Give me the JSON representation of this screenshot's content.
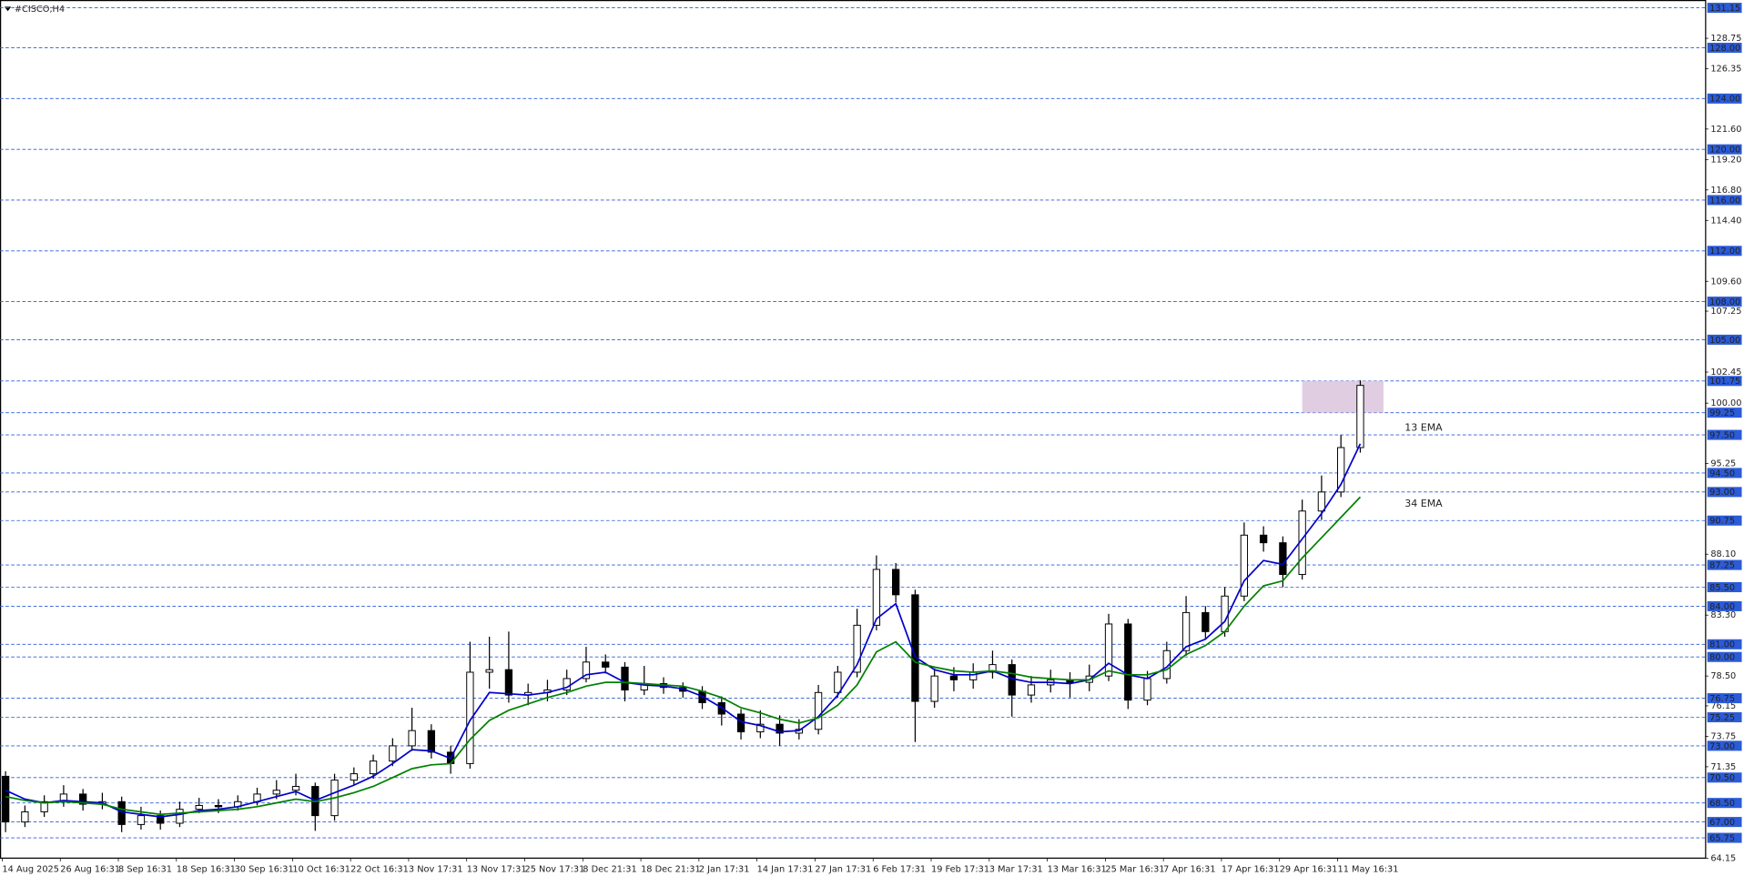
{
  "chart_data": {
    "type": "candlestick",
    "title": "#CISCO,H4",
    "candles": [
      [
        70.6,
        71.0,
        66.2,
        67.0
      ],
      [
        67.0,
        68.3,
        66.6,
        67.8
      ],
      [
        67.8,
        69.1,
        67.4,
        68.6
      ],
      [
        68.6,
        69.9,
        68.2,
        69.2
      ],
      [
        69.2,
        69.6,
        67.9,
        68.4
      ],
      [
        68.4,
        69.3,
        68.0,
        68.6
      ],
      [
        68.6,
        69.0,
        66.2,
        66.8
      ],
      [
        66.8,
        68.2,
        66.4,
        67.5
      ],
      [
        67.5,
        67.9,
        66.4,
        66.9
      ],
      [
        66.9,
        68.6,
        66.6,
        68.0
      ],
      [
        68.0,
        68.9,
        67.7,
        68.3
      ],
      [
        68.3,
        68.8,
        67.7,
        68.2
      ],
      [
        68.2,
        69.1,
        67.9,
        68.6
      ],
      [
        68.6,
        69.7,
        68.3,
        69.2
      ],
      [
        69.2,
        70.3,
        68.8,
        69.5
      ],
      [
        69.5,
        70.8,
        69.1,
        69.8
      ],
      [
        69.8,
        70.1,
        66.3,
        67.5
      ],
      [
        67.5,
        70.8,
        67.1,
        70.3
      ],
      [
        70.3,
        71.3,
        69.9,
        70.8
      ],
      [
        70.8,
        72.3,
        70.4,
        71.8
      ],
      [
        71.8,
        73.6,
        71.4,
        73.0
      ],
      [
        73.0,
        76.0,
        72.6,
        74.2
      ],
      [
        74.2,
        74.7,
        72.0,
        72.5
      ],
      [
        72.5,
        73.0,
        70.8,
        71.6
      ],
      [
        71.6,
        81.2,
        71.2,
        78.8
      ],
      [
        78.8,
        81.6,
        77.5,
        79.0
      ],
      [
        79.0,
        82.0,
        76.4,
        77.0
      ],
      [
        77.0,
        77.9,
        76.2,
        77.2
      ],
      [
        77.2,
        78.2,
        76.5,
        77.4
      ],
      [
        77.4,
        79.0,
        77.0,
        78.3
      ],
      [
        78.3,
        80.8,
        78.0,
        79.6
      ],
      [
        79.6,
        80.2,
        78.7,
        79.2
      ],
      [
        79.2,
        79.6,
        76.5,
        77.4
      ],
      [
        77.4,
        79.3,
        77.0,
        77.9
      ],
      [
        77.9,
        78.4,
        77.1,
        77.6
      ],
      [
        77.6,
        78.0,
        76.8,
        77.3
      ],
      [
        77.3,
        77.7,
        75.9,
        76.4
      ],
      [
        76.4,
        76.9,
        74.6,
        75.5
      ],
      [
        75.5,
        75.9,
        73.5,
        74.1
      ],
      [
        74.1,
        75.8,
        73.6,
        74.7
      ],
      [
        74.7,
        75.4,
        73.0,
        74.0
      ],
      [
        74.0,
        75.1,
        73.5,
        74.3
      ],
      [
        74.3,
        77.8,
        73.9,
        77.2
      ],
      [
        77.2,
        79.3,
        76.8,
        78.8
      ],
      [
        78.8,
        83.8,
        78.4,
        82.5
      ],
      [
        82.5,
        88.0,
        82.1,
        86.9
      ],
      [
        86.9,
        87.4,
        84.3,
        84.9
      ],
      [
        84.9,
        85.3,
        73.3,
        76.5
      ],
      [
        76.5,
        79.1,
        76.0,
        78.5
      ],
      [
        78.5,
        79.2,
        77.3,
        78.2
      ],
      [
        78.2,
        79.5,
        77.5,
        78.8
      ],
      [
        78.8,
        80.5,
        78.3,
        79.4
      ],
      [
        79.4,
        79.8,
        75.3,
        77.0
      ],
      [
        77.0,
        78.5,
        76.4,
        77.8
      ],
      [
        77.8,
        79.0,
        77.2,
        78.2
      ],
      [
        78.2,
        78.8,
        76.8,
        78.0
      ],
      [
        78.0,
        79.4,
        77.3,
        78.5
      ],
      [
        78.5,
        83.4,
        78.1,
        82.6
      ],
      [
        82.6,
        83.0,
        75.9,
        76.6
      ],
      [
        76.6,
        78.9,
        76.2,
        78.3
      ],
      [
        78.3,
        81.2,
        77.9,
        80.5
      ],
      [
        80.5,
        84.8,
        80.1,
        83.5
      ],
      [
        83.5,
        84.0,
        81.4,
        82.0
      ],
      [
        82.0,
        85.5,
        81.6,
        84.8
      ],
      [
        84.8,
        90.6,
        84.4,
        89.6
      ],
      [
        89.6,
        90.3,
        88.3,
        89.0
      ],
      [
        89.0,
        89.5,
        85.5,
        86.5
      ],
      [
        86.5,
        92.4,
        86.1,
        91.5
      ],
      [
        91.5,
        94.3,
        90.8,
        93.0
      ],
      [
        93.0,
        97.5,
        92.6,
        96.5
      ],
      [
        96.5,
        101.8,
        96.1,
        101.4
      ]
    ],
    "up_color": "#ffffff",
    "down_color": "#000000",
    "series": [
      {
        "name": "13 EMA",
        "color": "#0000cc",
        "values": [
          69.5,
          68.8,
          68.5,
          68.7,
          68.6,
          68.5,
          67.8,
          67.6,
          67.4,
          67.6,
          67.9,
          68.0,
          68.2,
          68.6,
          69.0,
          69.4,
          68.7,
          69.3,
          69.9,
          70.6,
          71.6,
          72.7,
          72.6,
          72.0,
          75.0,
          77.2,
          77.1,
          77.0,
          77.2,
          77.6,
          78.6,
          78.8,
          78.0,
          77.8,
          77.7,
          77.5,
          76.9,
          76.0,
          74.9,
          74.6,
          74.1,
          74.2,
          75.3,
          77.0,
          79.4,
          83.0,
          84.2,
          80.0,
          79.0,
          78.6,
          78.6,
          78.9,
          78.3,
          78.0,
          78.0,
          77.9,
          78.2,
          79.5,
          78.6,
          78.3,
          79.2,
          80.8,
          81.4,
          82.8,
          86.0,
          87.6,
          87.3,
          89.3,
          91.3,
          93.6,
          96.8
        ]
      },
      {
        "name": "34 EMA",
        "color": "#008000",
        "values": [
          69.0,
          68.7,
          68.5,
          68.6,
          68.5,
          68.4,
          68.0,
          67.8,
          67.6,
          67.7,
          67.8,
          67.9,
          68.0,
          68.2,
          68.5,
          68.8,
          68.6,
          68.9,
          69.3,
          69.8,
          70.5,
          71.2,
          71.5,
          71.6,
          73.5,
          75.0,
          75.8,
          76.3,
          76.8,
          77.2,
          77.7,
          78.0,
          78.0,
          77.9,
          77.8,
          77.7,
          77.3,
          76.8,
          76.0,
          75.6,
          75.1,
          74.8,
          75.2,
          76.2,
          77.8,
          80.4,
          81.2,
          79.6,
          79.2,
          78.9,
          78.8,
          78.9,
          78.7,
          78.4,
          78.3,
          78.2,
          78.2,
          78.9,
          78.6,
          78.6,
          79.0,
          80.2,
          80.9,
          82.0,
          84.0,
          85.6,
          86.0,
          87.8,
          89.4,
          91.0,
          92.6
        ]
      }
    ],
    "time_labels": [
      "14 Aug 2025",
      "26 Aug 16:31",
      "8 Sep 16:31",
      "18 Sep 16:31",
      "30 Sep 16:31",
      "10 Oct 16:31",
      "22 Oct 16:31",
      "3 Nov 17:31",
      "13 Nov 17:31",
      "25 Nov 17:31",
      "8 Dec 21:31",
      "18 Dec 21:31",
      "2 Jan 17:31",
      "14 Jan 17:31",
      "27 Jan 17:31",
      "6 Feb 17:31",
      "19 Feb 17:31",
      "3 Mar 17:31",
      "13 Mar 16:31",
      "25 Mar 16:31",
      "7 Apr 16:31",
      "17 Apr 16:31",
      "29 Apr 16:31",
      "11 May 16:31"
    ],
    "ylim": [
      64.15,
      131.15
    ],
    "yticks": [
      128.75,
      126.35,
      {
        "value": 121.6,
        "label": "121.60"
      },
      {
        "value": 119.2,
        "label": "119.20"
      },
      {
        "value": 116.8,
        "label": "116.80"
      },
      {
        "value": 114.4,
        "label": "114.40"
      },
      {
        "value": 109.6,
        "label": "109.60"
      },
      107.25,
      102.45,
      {
        "value": 100,
        "label": "100.00"
      },
      95.25,
      {
        "value": 88.1,
        "label": "88.10"
      },
      {
        "value": 83.3,
        "label": "83.30"
      },
      {
        "value": 78.5,
        "label": "78.50"
      },
      76.15,
      73.75,
      71.35,
      64.15
    ],
    "levels": [
      131.15,
      {
        "value": 128,
        "label": "128.00"
      },
      {
        "value": 124,
        "label": "124.00"
      },
      {
        "value": 120,
        "label": "120.00"
      },
      {
        "value": 116,
        "label": "116.00"
      },
      {
        "value": 112,
        "label": "112.00"
      },
      {
        "value": 108,
        "label": "108.00"
      },
      {
        "value": 105,
        "label": "105.00"
      },
      101.75,
      99.25,
      {
        "value": 97.5,
        "label": "97.50"
      },
      {
        "value": 94.5,
        "label": "94.50"
      },
      {
        "value": 93,
        "label": "93.00"
      },
      90.75,
      87.25,
      {
        "value": 85.5,
        "label": "85.50"
      },
      {
        "value": 84,
        "label": "84.00"
      },
      {
        "value": 81,
        "label": "81.00"
      },
      {
        "value": 80,
        "label": "80.00"
      },
      76.75,
      75.25,
      {
        "value": 73,
        "label": "73.00"
      },
      {
        "value": 70.5,
        "label": "70.50"
      },
      {
        "value": 68.5,
        "label": "68.50"
      },
      {
        "value": 67,
        "label": "67.00"
      },
      65.75
    ],
    "level_color": "#2b5bd7",
    "zone": [
      99.25,
      101.75
    ],
    "zone_color": "#dcc4dc"
  }
}
